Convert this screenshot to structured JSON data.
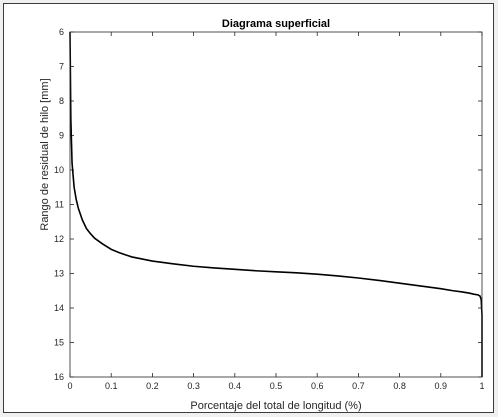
{
  "chart_data": {
    "type": "line",
    "title": "Diagrama superficial",
    "xlabel": "Porcentaje del total de longitud (%)",
    "ylabel": "Rango de residual de hilo [mm]",
    "xlim": [
      0,
      1
    ],
    "ylim": [
      6,
      16
    ],
    "y_reversed": true,
    "grid": false,
    "xticks": [
      0,
      0.1,
      0.2,
      0.3,
      0.4,
      0.5,
      0.6,
      0.7,
      0.8,
      0.9,
      1
    ],
    "xtick_labels": [
      "0",
      "0.1",
      "0.2",
      "0.3",
      "0.4",
      "0.5",
      "0.6",
      "0.7",
      "0.8",
      "0.9",
      "1"
    ],
    "yticks": [
      6,
      7,
      8,
      9,
      10,
      11,
      12,
      13,
      14,
      15,
      16
    ],
    "ytick_labels": [
      "6",
      "7",
      "8",
      "9",
      "10",
      "11",
      "12",
      "13",
      "14",
      "15",
      "16"
    ],
    "series": [
      {
        "color": "#000000",
        "x": [
          0,
          0.002,
          0.005,
          0.01,
          0.015,
          0.02,
          0.03,
          0.04,
          0.05,
          0.06,
          0.08,
          0.1,
          0.12,
          0.15,
          0.2,
          0.25,
          0.3,
          0.35,
          0.4,
          0.45,
          0.5,
          0.55,
          0.6,
          0.65,
          0.7,
          0.75,
          0.8,
          0.85,
          0.9,
          0.93,
          0.95,
          0.97,
          0.98,
          0.99,
          0.995,
          0.998,
          1,
          1
        ],
        "y": [
          6.0,
          8.5,
          9.8,
          10.5,
          10.85,
          11.1,
          11.45,
          11.7,
          11.85,
          11.98,
          12.15,
          12.3,
          12.4,
          12.52,
          12.64,
          12.72,
          12.79,
          12.84,
          12.88,
          12.92,
          12.95,
          12.98,
          13.02,
          13.07,
          13.13,
          13.2,
          13.28,
          13.36,
          13.44,
          13.5,
          13.53,
          13.57,
          13.6,
          13.62,
          13.65,
          13.75,
          14.2,
          16.0
        ]
      }
    ]
  }
}
